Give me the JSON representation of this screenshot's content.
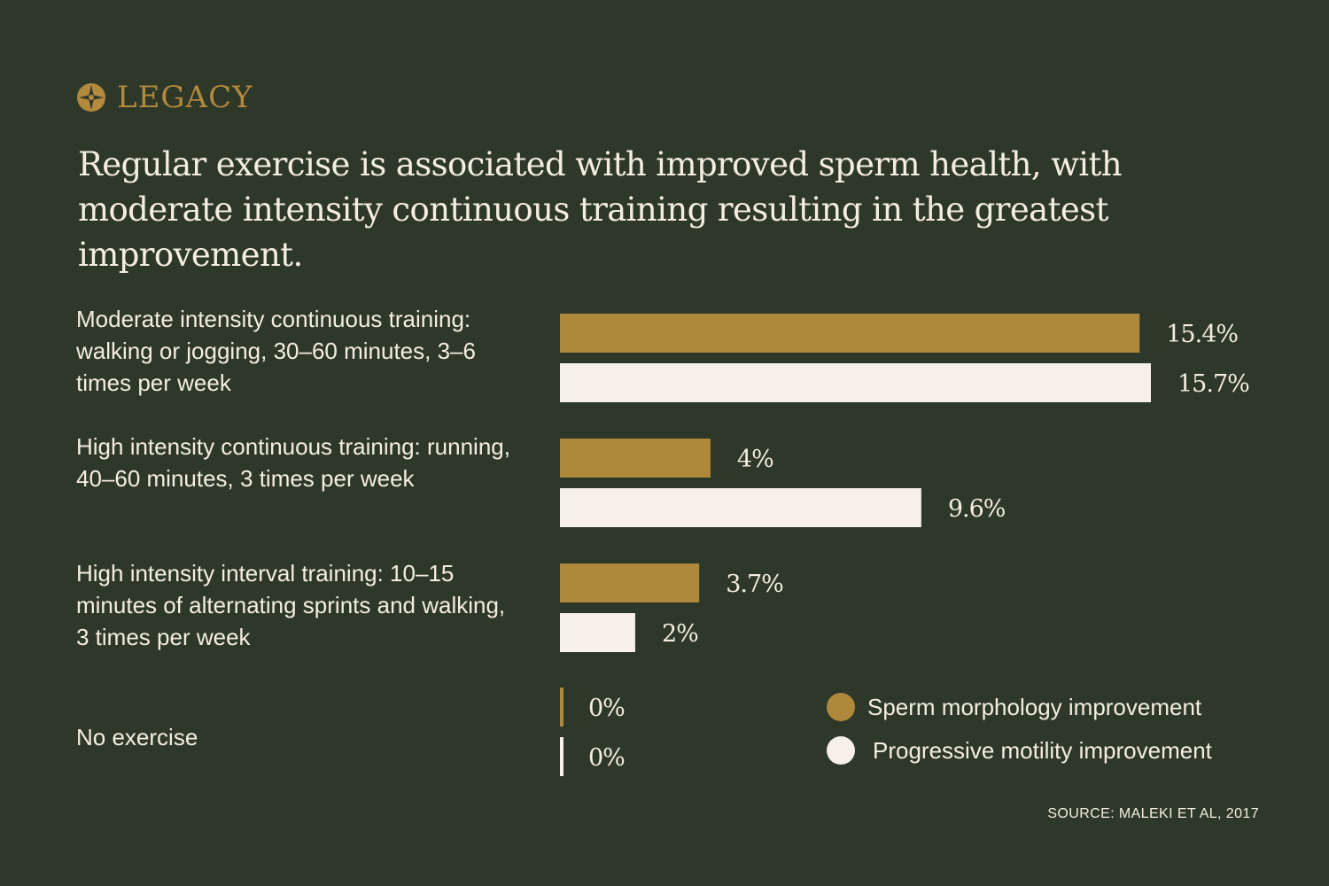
{
  "brand": {
    "name": "LEGACY",
    "icon": "compass-star-icon",
    "color": "#b2893d"
  },
  "headline": "Regular exercise is associated with improved sperm health, with moderate intensity continuous training resulting in the greatest improvement.",
  "colors": {
    "background": "#2e3829",
    "morphology": "#ae893c",
    "motility": "#f6f0e6",
    "text": "#f4eee2"
  },
  "chart_data": {
    "type": "bar",
    "orientation": "horizontal",
    "categories": [
      "Moderate intensity continuous training: walking or jogging, 30–60 minutes, 3–6 times per week",
      "High intensity continuous training: running, 40–60 minutes, 3 times per week",
      "High intensity interval training: 10–15 minutes of alternating sprints and walking, 3 times per week",
      "No exercise"
    ],
    "series": [
      {
        "name": "Sperm morphology improvement",
        "values": [
          15.4,
          4,
          3.7,
          0
        ],
        "labels": [
          "15.4%",
          "4%",
          "3.7%",
          "0%"
        ],
        "color": "#ae893c"
      },
      {
        "name": "Progressive motility improvement",
        "values": [
          15.7,
          9.6,
          2,
          0
        ],
        "labels": [
          "15.7%",
          "9.6%",
          "2%",
          "0%"
        ],
        "color": "#f6f0e6"
      }
    ],
    "unit": "%",
    "xlim": [
      0,
      15.7
    ],
    "grid": false,
    "legend_position": "bottom-right"
  },
  "source": "SOURCE: MALEKI ET AL, 2017"
}
